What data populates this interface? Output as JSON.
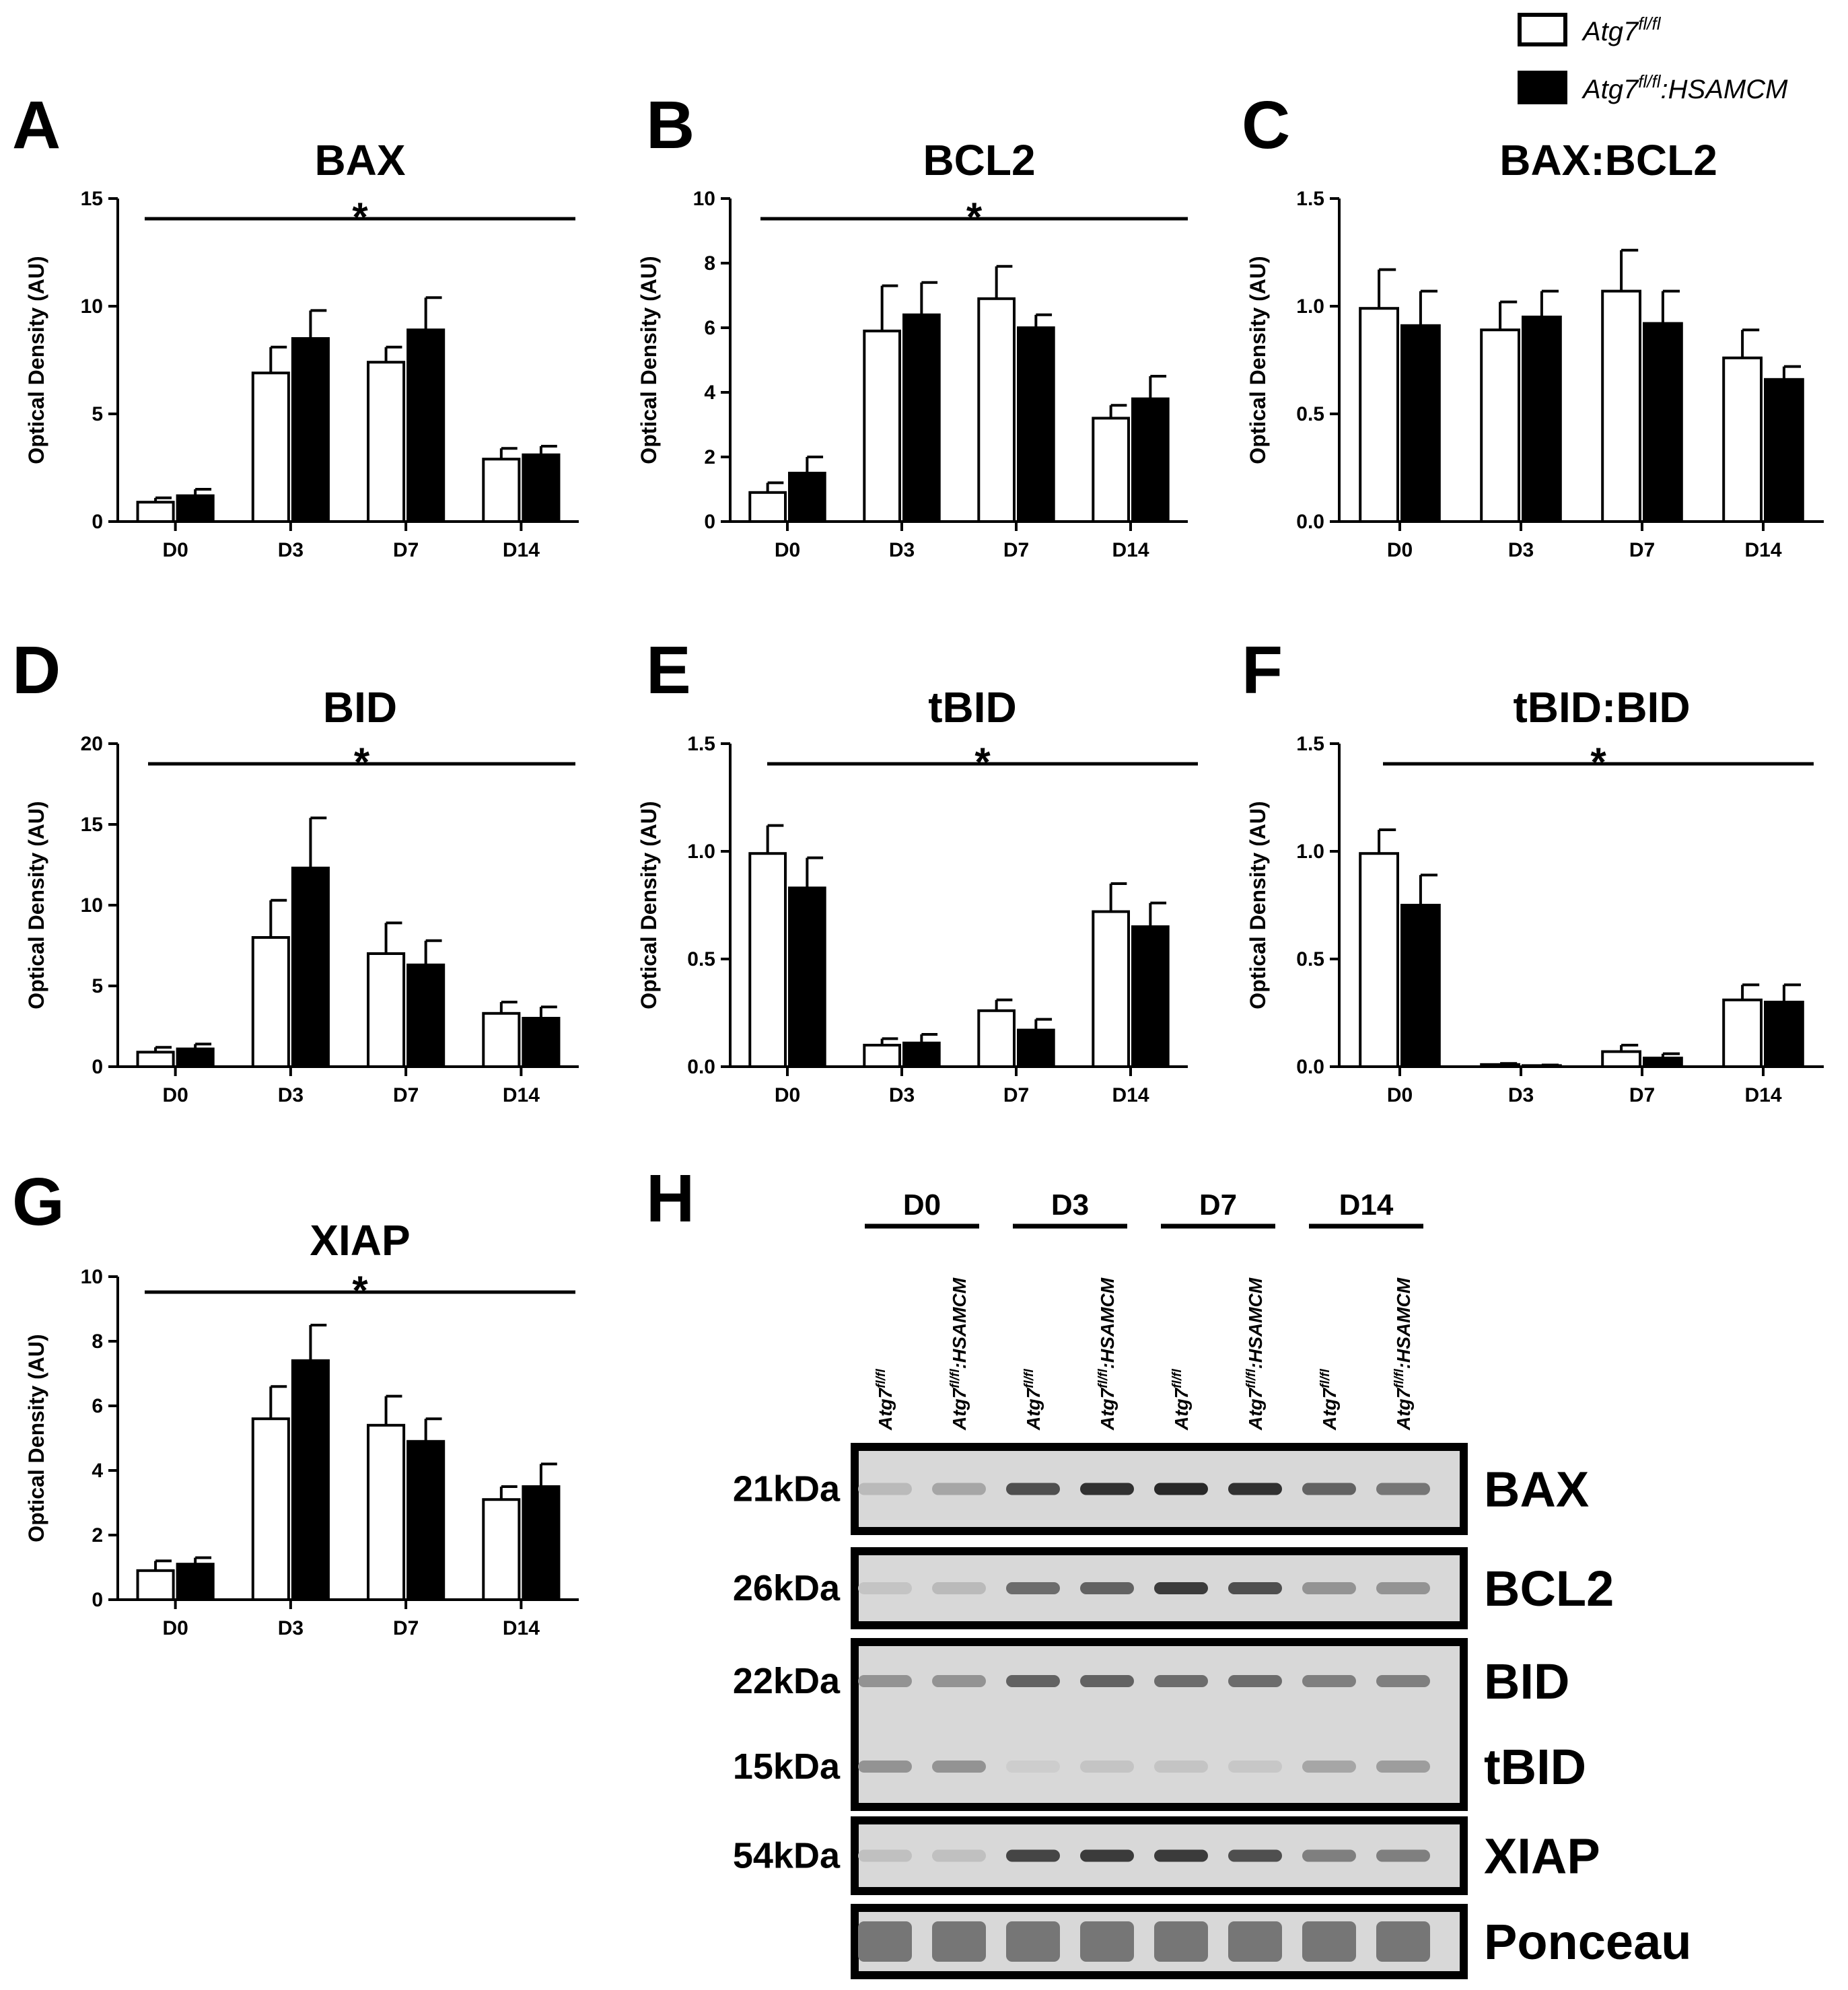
{
  "legend": {
    "series": [
      {
        "name": "Atg7",
        "sup": "fl/fl",
        "suffix": "",
        "fill": "#ffffff"
      },
      {
        "name": "Atg7",
        "sup": "fl/fl",
        "suffix": ":HSAMCM",
        "fill": "#000000"
      }
    ]
  },
  "chart_data": [
    {
      "panel": "A",
      "type": "bar",
      "title": "BAX",
      "ylabel": "Optical Density (AU)",
      "xlabel": "",
      "categories": [
        "D0",
        "D3",
        "D7",
        "D14"
      ],
      "ylim": [
        0,
        15
      ],
      "yticks": [
        "0",
        "5",
        "10",
        "15"
      ],
      "significance": "*",
      "series": [
        {
          "values": [
            0.9,
            6.9,
            7.4,
            2.9
          ],
          "errors": [
            0.2,
            1.2,
            0.7,
            0.5
          ]
        },
        {
          "values": [
            1.2,
            8.5,
            8.9,
            3.1
          ],
          "errors": [
            0.3,
            1.3,
            1.5,
            0.4
          ]
        }
      ]
    },
    {
      "panel": "B",
      "type": "bar",
      "title": "BCL2",
      "ylabel": "Optical Density (AU)",
      "xlabel": "",
      "categories": [
        "D0",
        "D3",
        "D7",
        "D14"
      ],
      "ylim": [
        0,
        10
      ],
      "yticks": [
        "0",
        "2",
        "4",
        "6",
        "8",
        "10"
      ],
      "significance": "*",
      "series": [
        {
          "values": [
            0.9,
            5.9,
            6.9,
            3.2
          ],
          "errors": [
            0.3,
            1.4,
            1.0,
            0.4
          ]
        },
        {
          "values": [
            1.5,
            6.4,
            6.0,
            3.8
          ],
          "errors": [
            0.5,
            1.0,
            0.4,
            0.7
          ]
        }
      ]
    },
    {
      "panel": "C",
      "type": "bar",
      "title": "BAX:BCL2",
      "ylabel": "Optical Density (AU)",
      "xlabel": "",
      "categories": [
        "D0",
        "D3",
        "D7",
        "D14"
      ],
      "ylim": [
        0,
        1.5
      ],
      "yticks": [
        "0.0",
        "0.5",
        "1.0",
        "1.5"
      ],
      "significance": "",
      "series": [
        {
          "values": [
            0.99,
            0.89,
            1.07,
            0.76
          ],
          "errors": [
            0.18,
            0.13,
            0.19,
            0.13
          ]
        },
        {
          "values": [
            0.91,
            0.95,
            0.92,
            0.66
          ],
          "errors": [
            0.16,
            0.12,
            0.15,
            0.06
          ]
        }
      ]
    },
    {
      "panel": "D",
      "type": "bar",
      "title": "BID",
      "ylabel": "Optical Density (AU)",
      "xlabel": "",
      "categories": [
        "D0",
        "D3",
        "D7",
        "D14"
      ],
      "ylim": [
        0,
        20
      ],
      "yticks": [
        "0",
        "5",
        "10",
        "15",
        "20"
      ],
      "significance": "*",
      "series": [
        {
          "values": [
            0.9,
            8.0,
            7.0,
            3.3
          ],
          "errors": [
            0.3,
            2.3,
            1.9,
            0.7
          ]
        },
        {
          "values": [
            1.1,
            12.3,
            6.3,
            3.0
          ],
          "errors": [
            0.3,
            3.1,
            1.5,
            0.7
          ]
        }
      ]
    },
    {
      "panel": "E",
      "type": "bar",
      "title": "tBID",
      "ylabel": "Optical Density (AU)",
      "xlabel": "",
      "categories": [
        "D0",
        "D3",
        "D7",
        "D14"
      ],
      "ylim": [
        0,
        1.5
      ],
      "yticks": [
        "0.0",
        "0.5",
        "1.0",
        "1.5"
      ],
      "significance": "*",
      "series": [
        {
          "values": [
            0.99,
            0.1,
            0.26,
            0.72
          ],
          "errors": [
            0.13,
            0.03,
            0.05,
            0.13
          ]
        },
        {
          "values": [
            0.83,
            0.11,
            0.17,
            0.65
          ],
          "errors": [
            0.14,
            0.04,
            0.05,
            0.11
          ]
        }
      ]
    },
    {
      "panel": "F",
      "type": "bar",
      "title": "tBID:BID",
      "ylabel": "Optical Density (AU)",
      "xlabel": "",
      "categories": [
        "D0",
        "D3",
        "D7",
        "D14"
      ],
      "ylim": [
        0,
        1.5
      ],
      "yticks": [
        "0.0",
        "0.5",
        "1.0",
        "1.5"
      ],
      "significance": "*",
      "series": [
        {
          "values": [
            0.99,
            0.01,
            0.07,
            0.31
          ],
          "errors": [
            0.11,
            0.005,
            0.03,
            0.07
          ]
        },
        {
          "values": [
            0.75,
            0.005,
            0.04,
            0.3
          ],
          "errors": [
            0.14,
            0.003,
            0.02,
            0.08
          ]
        }
      ]
    },
    {
      "panel": "G",
      "type": "bar",
      "title": "XIAP",
      "ylabel": "Optical Density (AU)",
      "xlabel": "",
      "categories": [
        "D0",
        "D3",
        "D7",
        "D14"
      ],
      "ylim": [
        0,
        10
      ],
      "yticks": [
        "0",
        "2",
        "4",
        "6",
        "8",
        "10"
      ],
      "significance": "*",
      "series": [
        {
          "values": [
            0.9,
            5.6,
            5.4,
            3.1
          ],
          "errors": [
            0.3,
            1.0,
            0.9,
            0.4
          ]
        },
        {
          "values": [
            1.1,
            7.4,
            4.9,
            3.5
          ],
          "errors": [
            0.2,
            1.1,
            0.7,
            0.7
          ]
        }
      ]
    }
  ],
  "western": {
    "panel": "H",
    "days": [
      "D0",
      "D3",
      "D7",
      "D14"
    ],
    "lanes": [
      {
        "name": "Atg7",
        "sup": "fl/fl",
        "suffix": ""
      },
      {
        "name": "Atg7",
        "sup": "fl/fl",
        "suffix": ":HSAMCM"
      }
    ],
    "blots": [
      {
        "kda": [
          "21kDa"
        ],
        "labels": [
          "BAX"
        ],
        "intensity": [
          0.15,
          0.25,
          0.7,
          0.85,
          0.9,
          0.85,
          0.6,
          0.5
        ]
      },
      {
        "kda": [
          "26kDa"
        ],
        "labels": [
          "BCL2"
        ],
        "intensity": [
          0.1,
          0.15,
          0.55,
          0.6,
          0.8,
          0.7,
          0.35,
          0.35
        ]
      },
      {
        "kda": [
          "22kDa",
          "15kDa"
        ],
        "labels": [
          "BID",
          "tBID"
        ],
        "intensity": [
          0.35,
          0.35,
          0.6,
          0.6,
          0.55,
          0.55,
          0.45,
          0.45
        ],
        "intensity2": [
          0.35,
          0.35,
          0.05,
          0.1,
          0.1,
          0.08,
          0.25,
          0.3
        ]
      },
      {
        "kda": [
          "54kDa"
        ],
        "labels": [
          "XIAP"
        ],
        "intensity": [
          0.12,
          0.12,
          0.75,
          0.8,
          0.8,
          0.7,
          0.45,
          0.45
        ]
      },
      {
        "kda": [
          ""
        ],
        "labels": [
          "Ponceau"
        ],
        "intensity": [
          0.5,
          0.5,
          0.5,
          0.5,
          0.5,
          0.5,
          0.5,
          0.5
        ]
      }
    ]
  }
}
